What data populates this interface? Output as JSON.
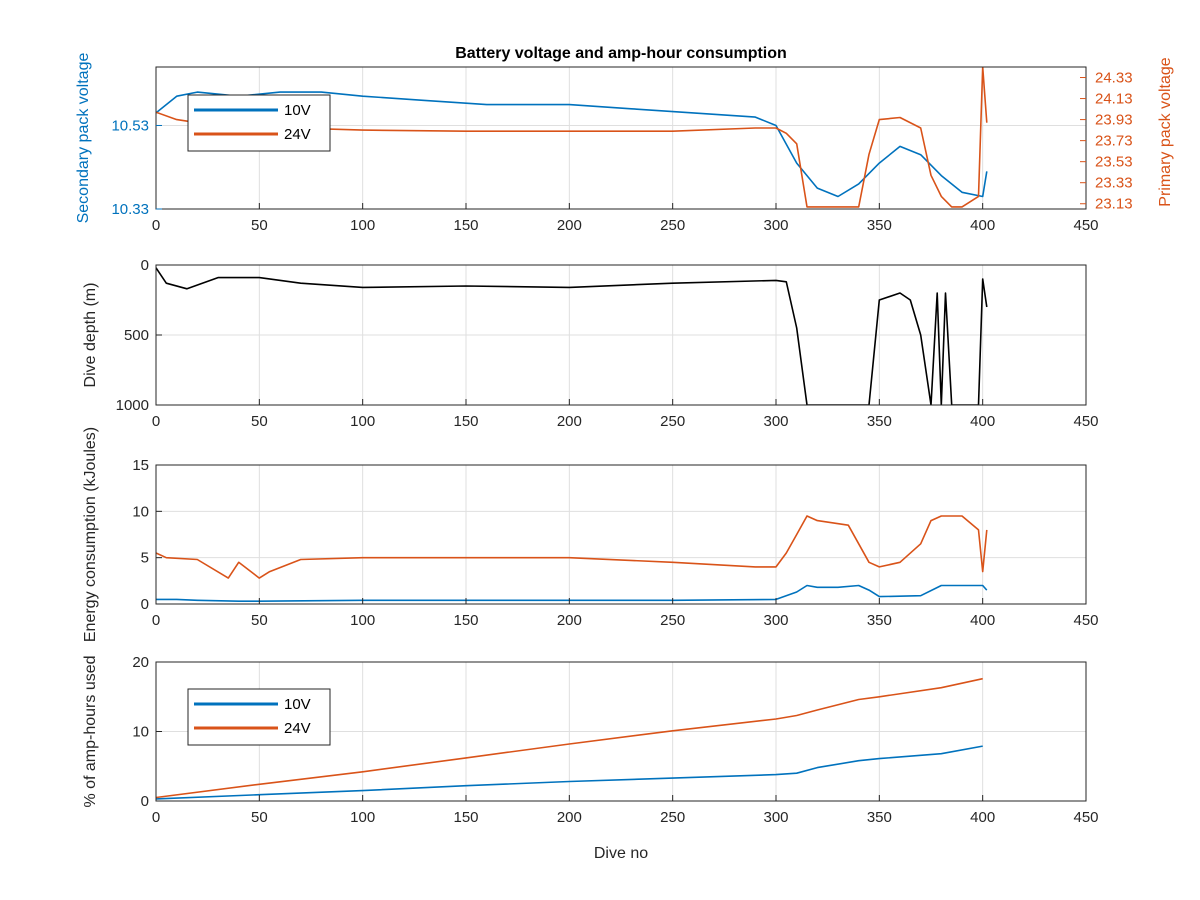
{
  "colors": {
    "blue": "#0072BD",
    "orange": "#D95319",
    "black": "#000000",
    "grid": "#DFDFDF",
    "axis": "#262626"
  },
  "chart_data": [
    {
      "type": "line",
      "title": "Battery voltage and amp-hour consumption",
      "xlabel": "",
      "ylabel": "Secondary pack voltage",
      "ylabel_right": "Primary pack voltage",
      "xlim": [
        0,
        450
      ],
      "ylim": [
        10.33,
        10.67
      ],
      "ylim_right": [
        23.08,
        24.43
      ],
      "xticks": [
        "0",
        "50",
        "100",
        "150",
        "200",
        "250",
        "300",
        "350",
        "400",
        "450"
      ],
      "yticks": [
        "10.33",
        "10.53"
      ],
      "yticks_right": [
        "23.13",
        "23.33",
        "23.53",
        "23.73",
        "23.93",
        "24.13",
        "24.33"
      ],
      "grid": true,
      "legend": {
        "placement": "top-left",
        "entries": [
          "10V",
          "24V"
        ]
      },
      "series": [
        {
          "name": "10V",
          "axis": "left",
          "color": "#0072BD",
          "x": [
            0,
            10,
            20,
            40,
            60,
            80,
            100,
            130,
            160,
            200,
            230,
            260,
            290,
            300,
            310,
            320,
            330,
            340,
            350,
            360,
            370,
            380,
            390,
            400,
            402
          ],
          "y": [
            10.56,
            10.6,
            10.61,
            10.6,
            10.61,
            10.61,
            10.6,
            10.59,
            10.58,
            10.58,
            10.57,
            10.56,
            10.55,
            10.53,
            10.44,
            10.38,
            10.36,
            10.39,
            10.44,
            10.48,
            10.46,
            10.41,
            10.37,
            10.36,
            10.42
          ]
        },
        {
          "name": "24V",
          "axis": "right",
          "color": "#D95319",
          "x": [
            0,
            10,
            20,
            50,
            100,
            150,
            200,
            250,
            290,
            300,
            305,
            310,
            315,
            320,
            335,
            340,
            345,
            350,
            360,
            370,
            375,
            380,
            385,
            390,
            398,
            400,
            402
          ],
          "y": [
            24.0,
            23.93,
            23.9,
            23.86,
            23.83,
            23.82,
            23.82,
            23.82,
            23.85,
            23.85,
            23.8,
            23.7,
            23.1,
            23.1,
            23.1,
            23.1,
            23.6,
            23.93,
            23.95,
            23.85,
            23.4,
            23.2,
            23.1,
            23.1,
            23.2,
            24.43,
            23.9
          ]
        }
      ]
    },
    {
      "type": "line",
      "xlabel": "",
      "ylabel": "Dive depth (m)",
      "xlim": [
        0,
        450
      ],
      "ylim": [
        0,
        1000
      ],
      "y_reversed": true,
      "xticks": [
        "0",
        "50",
        "100",
        "150",
        "200",
        "250",
        "300",
        "350",
        "400",
        "450"
      ],
      "yticks": [
        "0",
        "500",
        "1000"
      ],
      "grid": true,
      "series": [
        {
          "color": "#000000",
          "x": [
            0,
            5,
            15,
            30,
            50,
            70,
            100,
            150,
            200,
            250,
            300,
            305,
            310,
            315,
            320,
            345,
            350,
            360,
            365,
            370,
            375,
            378,
            380,
            382,
            385,
            388,
            390,
            395,
            398,
            400,
            402
          ],
          "y": [
            20,
            130,
            170,
            90,
            90,
            130,
            160,
            150,
            160,
            130,
            110,
            120,
            450,
            1000,
            1000,
            1000,
            250,
            200,
            250,
            500,
            1000,
            200,
            1000,
            200,
            1000,
            1000,
            1000,
            1000,
            1000,
            100,
            300
          ]
        }
      ]
    },
    {
      "type": "line",
      "xlabel": "",
      "ylabel": "Energy consumption (kJoules)",
      "xlim": [
        0,
        450
      ],
      "ylim": [
        0,
        15
      ],
      "xticks": [
        "0",
        "50",
        "100",
        "150",
        "200",
        "250",
        "300",
        "350",
        "400",
        "450"
      ],
      "yticks": [
        "0",
        "5",
        "10",
        "15"
      ],
      "grid": true,
      "series": [
        {
          "name": "10V",
          "color": "#0072BD",
          "x": [
            0,
            10,
            20,
            40,
            50,
            100,
            150,
            200,
            250,
            300,
            310,
            315,
            320,
            330,
            340,
            345,
            350,
            370,
            380,
            390,
            400,
            402
          ],
          "y": [
            0.5,
            0.5,
            0.4,
            0.3,
            0.3,
            0.4,
            0.4,
            0.4,
            0.4,
            0.5,
            1.3,
            2.0,
            1.8,
            1.8,
            2.0,
            1.5,
            0.8,
            0.9,
            2.0,
            2.0,
            2.0,
            1.5
          ]
        },
        {
          "name": "24V",
          "color": "#D95319",
          "x": [
            0,
            5,
            20,
            35,
            40,
            50,
            55,
            70,
            100,
            150,
            200,
            250,
            290,
            300,
            305,
            310,
            315,
            320,
            335,
            340,
            345,
            350,
            360,
            370,
            375,
            380,
            390,
            398,
            400,
            402
          ],
          "y": [
            5.5,
            5.0,
            4.8,
            2.8,
            4.5,
            2.8,
            3.5,
            4.8,
            5.0,
            5.0,
            5.0,
            4.5,
            4.0,
            4.0,
            5.5,
            7.5,
            9.5,
            9.0,
            8.5,
            6.5,
            4.5,
            4.0,
            4.5,
            6.5,
            9.0,
            9.5,
            9.5,
            8.0,
            3.5,
            8.0
          ]
        }
      ]
    },
    {
      "type": "line",
      "xlabel": "Dive no",
      "ylabel": "% of amp-hours used",
      "xlim": [
        0,
        450
      ],
      "ylim": [
        0,
        20
      ],
      "xticks": [
        "0",
        "50",
        "100",
        "150",
        "200",
        "250",
        "300",
        "350",
        "400",
        "450"
      ],
      "yticks": [
        "0",
        "10",
        "20"
      ],
      "grid": true,
      "legend": {
        "placement": "top-left",
        "entries": [
          "10V",
          "24V"
        ]
      },
      "series": [
        {
          "name": "10V",
          "color": "#0072BD",
          "x": [
            0,
            50,
            100,
            150,
            200,
            250,
            300,
            310,
            320,
            340,
            350,
            380,
            400
          ],
          "y": [
            0.3,
            0.9,
            1.5,
            2.2,
            2.8,
            3.3,
            3.8,
            4.0,
            4.8,
            5.8,
            6.1,
            6.8,
            7.9
          ]
        },
        {
          "name": "24V",
          "color": "#D95319",
          "x": [
            0,
            50,
            100,
            150,
            200,
            250,
            300,
            310,
            320,
            340,
            350,
            380,
            400
          ],
          "y": [
            0.5,
            2.4,
            4.2,
            6.2,
            8.2,
            10.1,
            11.8,
            12.3,
            13.1,
            14.6,
            15.0,
            16.3,
            17.6
          ]
        }
      ]
    }
  ]
}
